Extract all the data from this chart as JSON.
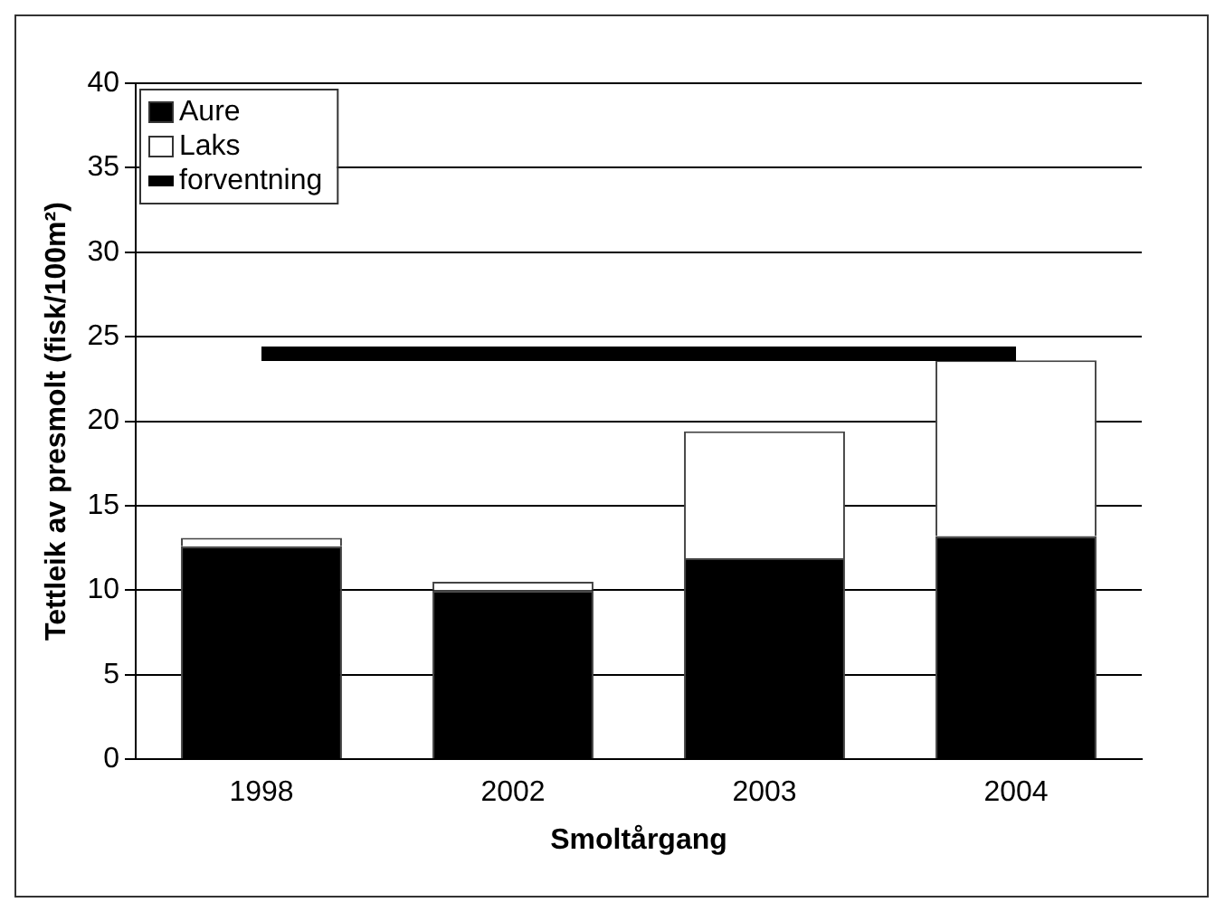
{
  "chart_data": {
    "type": "bar",
    "stacked": true,
    "xlabel": "Smoltårgang",
    "ylabel": "Tettleik av presmolt (fisk/100m²)",
    "categories": [
      "1998",
      "2002",
      "2003",
      "2004"
    ],
    "series": [
      {
        "name": "Aure",
        "color": "#000000",
        "values": [
          12.6,
          10.0,
          11.9,
          13.2
        ]
      },
      {
        "name": "Laks",
        "color": "#ffffff",
        "values": [
          0.5,
          0.5,
          7.5,
          10.4
        ]
      },
      {
        "name": "forventning",
        "type": "line",
        "color": "#000000",
        "values": [
          24,
          24,
          24,
          24
        ]
      }
    ],
    "ylim": [
      0,
      40
    ],
    "yticks": [
      0,
      5,
      10,
      15,
      20,
      25,
      30,
      35,
      40
    ],
    "grid": "y",
    "legend": "top left",
    "marker": "none"
  }
}
